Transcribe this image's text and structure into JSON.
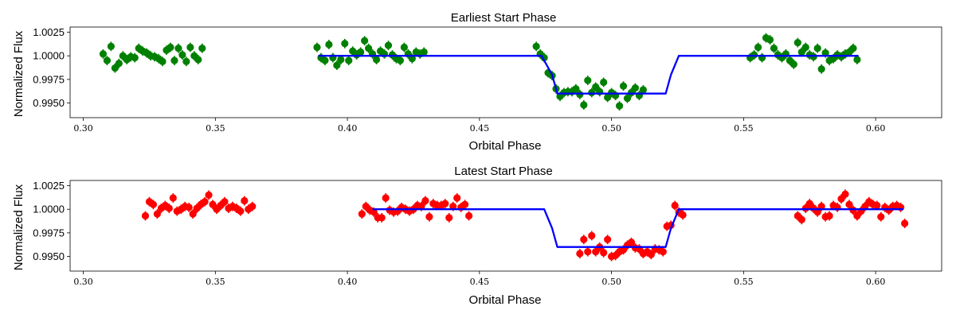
{
  "chart_data": [
    {
      "type": "scatter",
      "title": "Earliest Start Phase",
      "xlabel": "Orbital Phase",
      "ylabel": "Normalized Flux",
      "xlim": [
        0.295,
        0.625
      ],
      "ylim": [
        0.99345,
        1.00305
      ],
      "xticks": [
        0.3,
        0.35,
        0.4,
        0.45,
        0.5,
        0.55,
        0.6
      ],
      "xtick_labels": [
        "0.30",
        "0.35",
        "0.40",
        "0.45",
        "0.50",
        "0.55",
        "0.60"
      ],
      "yticks": [
        0.995,
        0.9975,
        1.0,
        1.0025
      ],
      "ytick_labels": [
        "0.9950",
        "0.9975",
        "1.0000",
        "1.0025"
      ],
      "grid": false,
      "series": [
        {
          "kind": "errorbar",
          "color": "#008000",
          "x": [
            0.3075,
            0.309,
            0.3105,
            0.312,
            0.3135,
            0.315,
            0.3165,
            0.318,
            0.3195,
            0.321,
            0.3225,
            0.324,
            0.3255,
            0.327,
            0.3285,
            0.33,
            0.3315,
            0.333,
            0.3345,
            0.336,
            0.3375,
            0.339,
            0.3405,
            0.342,
            0.3435,
            0.345,
            0.3885,
            0.39,
            0.3915,
            0.393,
            0.3945,
            0.396,
            0.3975,
            0.399,
            0.4005,
            0.402,
            0.4035,
            0.405,
            0.4065,
            0.408,
            0.4095,
            0.411,
            0.4125,
            0.414,
            0.4155,
            0.417,
            0.4185,
            0.42,
            0.4215,
            0.423,
            0.4245,
            0.426,
            0.4275,
            0.429,
            0.4715,
            0.473,
            0.4745,
            0.476,
            0.4775,
            0.479,
            0.4805,
            0.482,
            0.4835,
            0.485,
            0.4865,
            0.488,
            0.4895,
            0.491,
            0.4925,
            0.494,
            0.4955,
            0.497,
            0.4985,
            0.5,
            0.5015,
            0.503,
            0.5045,
            0.506,
            0.5075,
            0.509,
            0.5105,
            0.512,
            0.5525,
            0.554,
            0.5555,
            0.557,
            0.5585,
            0.56,
            0.5615,
            0.563,
            0.5645,
            0.566,
            0.5675,
            0.569,
            0.5705,
            0.572,
            0.5735,
            0.575,
            0.5765,
            0.578,
            0.5795,
            0.581,
            0.5825,
            0.584,
            0.5855,
            0.587,
            0.5885,
            0.59,
            0.5915,
            0.593
          ],
          "y": [
            1.0002,
            0.9995,
            1.001,
            0.9987,
            0.9992,
            1.0,
            0.9996,
            0.9999,
            0.9998,
            1.0008,
            1.0005,
            1.0003,
            1.0,
            0.9999,
            0.9997,
            0.9994,
            1.0006,
            1.0009,
            0.9995,
            1.0008,
            1.0001,
            0.9994,
            1.0009,
            1.0,
            0.9996,
            1.0008,
            1.0009,
            0.9998,
            0.9995,
            1.0012,
            0.9998,
            0.999,
            0.9996,
            1.0013,
            0.9995,
            1.0005,
            1.0001,
            1.0004,
            1.0016,
            1.0008,
            1.0002,
            0.9996,
            1.0005,
            1.0002,
            1.0011,
            1.0001,
            0.9997,
            0.9995,
            1.0009,
            1.0002,
            0.9997,
            1.0004,
            1.0002,
            1.0004,
            1.001,
            1.0002,
            0.9998,
            0.9982,
            0.9979,
            0.9965,
            0.9957,
            0.9961,
            0.9962,
            0.9962,
            0.9965,
            0.9959,
            0.9948,
            0.9974,
            0.9961,
            0.9967,
            0.9962,
            0.9972,
            0.9956,
            0.9961,
            0.9958,
            0.9947,
            0.9968,
            0.9955,
            0.9961,
            0.9966,
            0.9958,
            0.9964,
            0.9998,
            1.0001,
            1.0009,
            0.9998,
            1.0019,
            1.0017,
            1.0008,
            1.0001,
            0.9998,
            1.0002,
            0.9995,
            0.9991,
            1.0014,
            1.0004,
            1.0009,
            1.0001,
            0.9999,
            1.0008,
            0.9986,
            1.0003,
            0.9995,
            0.9997,
            1.0001,
            0.9999,
            1.0002,
            1.0004,
            1.0008,
            0.9996
          ],
          "err": 0.0005
        },
        {
          "kind": "line",
          "color": "#0000ff",
          "x": [
            0.389,
            0.4735,
            0.4775,
            0.4795,
            0.5205,
            0.5225,
            0.5255,
            0.5935
          ],
          "y": [
            1.0,
            1.0,
            0.998,
            0.996,
            0.996,
            0.998,
            1.0,
            1.0
          ]
        }
      ]
    },
    {
      "type": "scatter",
      "title": "Latest Start Phase",
      "xlabel": "Orbital Phase",
      "ylabel": "Normalized Flux",
      "xlim": [
        0.295,
        0.625
      ],
      "ylim": [
        0.99345,
        1.00305
      ],
      "xticks": [
        0.3,
        0.35,
        0.4,
        0.45,
        0.5,
        0.55,
        0.6
      ],
      "xtick_labels": [
        "0.30",
        "0.35",
        "0.40",
        "0.45",
        "0.50",
        "0.55",
        "0.60"
      ],
      "yticks": [
        0.995,
        0.9975,
        1.0,
        1.0025
      ],
      "ytick_labels": [
        "0.9950",
        "0.9975",
        "1.0000",
        "1.0025"
      ],
      "grid": false,
      "series": [
        {
          "kind": "errorbar",
          "color": "#ff0000",
          "x": [
            0.3235,
            0.325,
            0.3265,
            0.328,
            0.3295,
            0.331,
            0.3325,
            0.334,
            0.3355,
            0.337,
            0.3385,
            0.34,
            0.3415,
            0.343,
            0.3445,
            0.346,
            0.3475,
            0.349,
            0.3505,
            0.352,
            0.3535,
            0.355,
            0.3565,
            0.358,
            0.3595,
            0.361,
            0.3625,
            0.364,
            0.4055,
            0.407,
            0.4085,
            0.41,
            0.4115,
            0.413,
            0.4145,
            0.416,
            0.4175,
            0.419,
            0.4205,
            0.422,
            0.4235,
            0.425,
            0.4265,
            0.428,
            0.4295,
            0.431,
            0.4325,
            0.434,
            0.4355,
            0.437,
            0.4385,
            0.44,
            0.4415,
            0.443,
            0.4445,
            0.446,
            0.488,
            0.4895,
            0.491,
            0.4925,
            0.494,
            0.4955,
            0.497,
            0.4985,
            0.5,
            0.5015,
            0.503,
            0.5045,
            0.506,
            0.5075,
            0.509,
            0.5105,
            0.512,
            0.5135,
            0.515,
            0.5165,
            0.518,
            0.5195,
            0.521,
            0.5225,
            0.524,
            0.5255,
            0.527,
            0.5705,
            0.572,
            0.5735,
            0.575,
            0.5765,
            0.578,
            0.5795,
            0.581,
            0.5825,
            0.584,
            0.5855,
            0.587,
            0.5885,
            0.59,
            0.5915,
            0.593,
            0.5945,
            0.596,
            0.5975,
            0.599,
            0.6005,
            0.602,
            0.6035,
            0.605,
            0.6065,
            0.608,
            0.6095,
            0.611
          ],
          "y": [
            0.9993,
            1.0008,
            1.0005,
            0.9995,
            1.0001,
            1.0004,
            1.0001,
            1.0012,
            0.9998,
            1.0,
            1.0003,
            1.0002,
            0.9995,
            1.0001,
            1.0005,
            1.0008,
            1.0015,
            1.0005,
            1.0,
            1.0004,
            1.0008,
            1.0001,
            1.0003,
            1.0001,
            0.9998,
            1.0009,
            1.0,
            1.0003,
            0.9995,
            1.0003,
            0.9999,
            0.9997,
            0.9991,
            0.9991,
            1.0012,
            0.9999,
            0.9997,
            0.9998,
            1.0002,
            1.0,
            0.9998,
            1.0,
            1.0004,
            1.0003,
            1.0009,
            0.9992,
            1.0006,
            1.0004,
            1.0004,
            1.0006,
            0.9991,
            1.0003,
            1.0012,
            1.0002,
            1.0005,
            0.9993,
            0.9953,
            0.9968,
            0.9955,
            0.9972,
            0.9955,
            0.996,
            0.9954,
            0.9968,
            0.995,
            0.9951,
            0.9955,
            0.9957,
            0.9962,
            0.9965,
            0.9959,
            0.9958,
            0.9953,
            0.9955,
            0.9952,
            0.9958,
            0.9957,
            0.9955,
            0.9982,
            0.9983,
            1.0004,
            0.9997,
            0.9994,
            0.9993,
            0.9989,
            1.0001,
            1.0006,
            1.0001,
            0.9997,
            1.0003,
            0.9992,
            0.9993,
            1.0004,
            1.0002,
            1.0011,
            1.0016,
            1.0005,
            0.9999,
            0.9993,
            0.9998,
            1.0003,
            1.0008,
            1.0005,
            1.0004,
            0.9992,
            1.0002,
            0.9999,
            1.0003,
            1.0004,
            1.0002,
            0.9985
          ],
          "err": 0.0005
        },
        {
          "kind": "line",
          "color": "#0000ff",
          "x": [
            0.4095,
            0.4745,
            0.4775,
            0.4795,
            0.5205,
            0.5225,
            0.5255,
            0.6105
          ],
          "y": [
            1.0,
            1.0,
            0.998,
            0.996,
            0.996,
            0.998,
            1.0,
            1.0
          ]
        }
      ]
    }
  ]
}
